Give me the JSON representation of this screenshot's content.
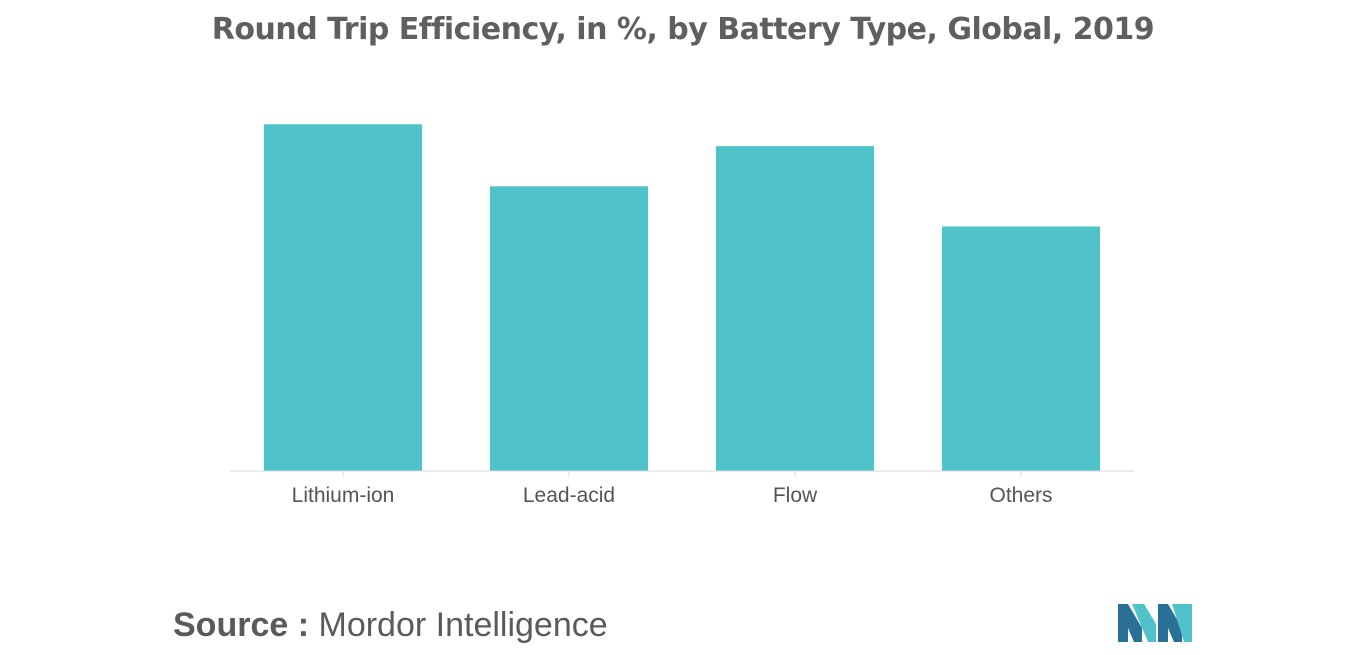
{
  "colors": {
    "bar": "#50c2c9",
    "text": "#5f5f5f",
    "logo_dark": "#2a6f96",
    "logo_light": "#50c2c9"
  },
  "source": {
    "prefix": "Source :",
    "name": "Mordor Intelligence"
  },
  "logo": {
    "icon": "mordor-intelligence-logo"
  },
  "chart_data": {
    "type": "bar",
    "title": "Round Trip Efficiency, in %, by Battery Type, Global, 2019",
    "xlabel": "",
    "ylabel": "",
    "categories": [
      "Lithium-ion",
      "Lead-acid",
      "Flow",
      "Others"
    ],
    "values": [
      95,
      78,
      89,
      67
    ],
    "ylim": [
      0,
      100
    ],
    "grid": false,
    "legend": "none"
  }
}
